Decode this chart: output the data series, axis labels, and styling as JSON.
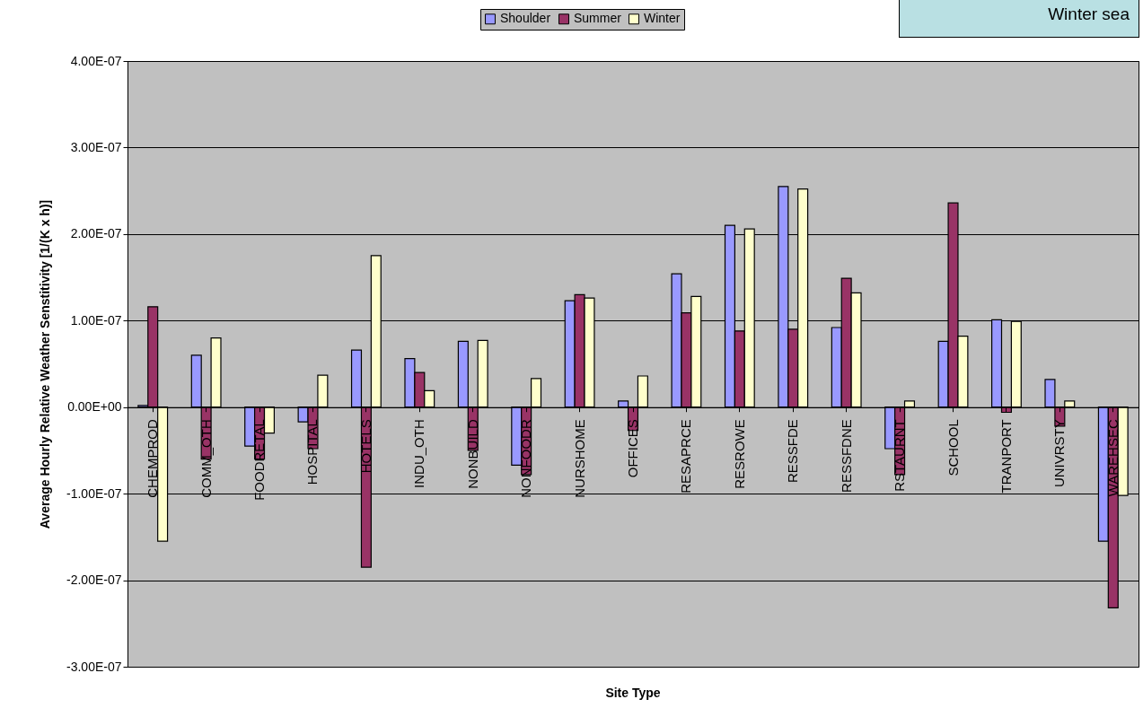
{
  "chart_data": {
    "type": "bar",
    "xlabel": "Site Type",
    "ylabel": "Average Hourly Relative Weather Senstitivity [1/(K x h)]",
    "annotations": [
      "Winter sea"
    ],
    "categories": [
      "CHEMPROD",
      "COMM_OTH",
      "FOODRETAL",
      "HOSPITAL",
      "HOTELS",
      "INDU_OTH",
      "NONBUILD",
      "NONFOODR",
      "NURSHOME",
      "OFFICES",
      "RESAPRCE",
      "RESROWE",
      "RESSFDE",
      "RESSFDNE",
      "RSTAURNT",
      "SCHOOL",
      "TRANPORT",
      "UNIVRSTY",
      "WAREHSEC"
    ],
    "series": [
      {
        "name": "Shoulder",
        "color": "#9999ff",
        "values": [
          2e-09,
          6e-08,
          -4.5e-08,
          -1.7e-08,
          6.6e-08,
          5.6e-08,
          7.6e-08,
          -6.7e-08,
          1.23e-07,
          7e-09,
          1.54e-07,
          2.1e-07,
          2.55e-07,
          9.2e-08,
          -4.8e-08,
          7.6e-08,
          1.01e-07,
          3.2e-08,
          -1.55e-07
        ]
      },
      {
        "name": "Summer",
        "color": "#993366",
        "values": [
          1.16e-07,
          -6e-08,
          -6e-08,
          -4.8e-08,
          -1.85e-07,
          4e-08,
          -5e-08,
          -7.8e-08,
          1.3e-07,
          -2.7e-08,
          1.09e-07,
          8.8e-08,
          9e-08,
          1.49e-07,
          -7.8e-08,
          2.36e-07,
          -6e-09,
          -2.2e-08,
          -2.32e-07
        ]
      },
      {
        "name": "Winter",
        "color": "#ffffcc",
        "values": [
          -1.55e-07,
          8e-08,
          -3e-08,
          3.7e-08,
          1.75e-07,
          1.9e-08,
          7.7e-08,
          3.3e-08,
          1.26e-07,
          3.6e-08,
          1.28e-07,
          2.06e-07,
          2.52e-07,
          1.32e-07,
          7e-09,
          8.2e-08,
          9.9e-08,
          7e-09,
          -1.02e-07
        ]
      }
    ],
    "ylim": [
      -3e-07,
      4e-07
    ],
    "yticks": [
      {
        "value": -3e-07,
        "label": "-3.00E-07"
      },
      {
        "value": -2e-07,
        "label": "-2.00E-07"
      },
      {
        "value": -1e-07,
        "label": "-1.00E-07"
      },
      {
        "value": 0,
        "label": "0.00E+00"
      },
      {
        "value": 1e-07,
        "label": "1.00E-07"
      },
      {
        "value": 2e-07,
        "label": "2.00E-07"
      },
      {
        "value": 3e-07,
        "label": "3.00E-07"
      },
      {
        "value": 4e-07,
        "label": "4.00E-07"
      }
    ],
    "grid": "y",
    "legend": "top"
  }
}
